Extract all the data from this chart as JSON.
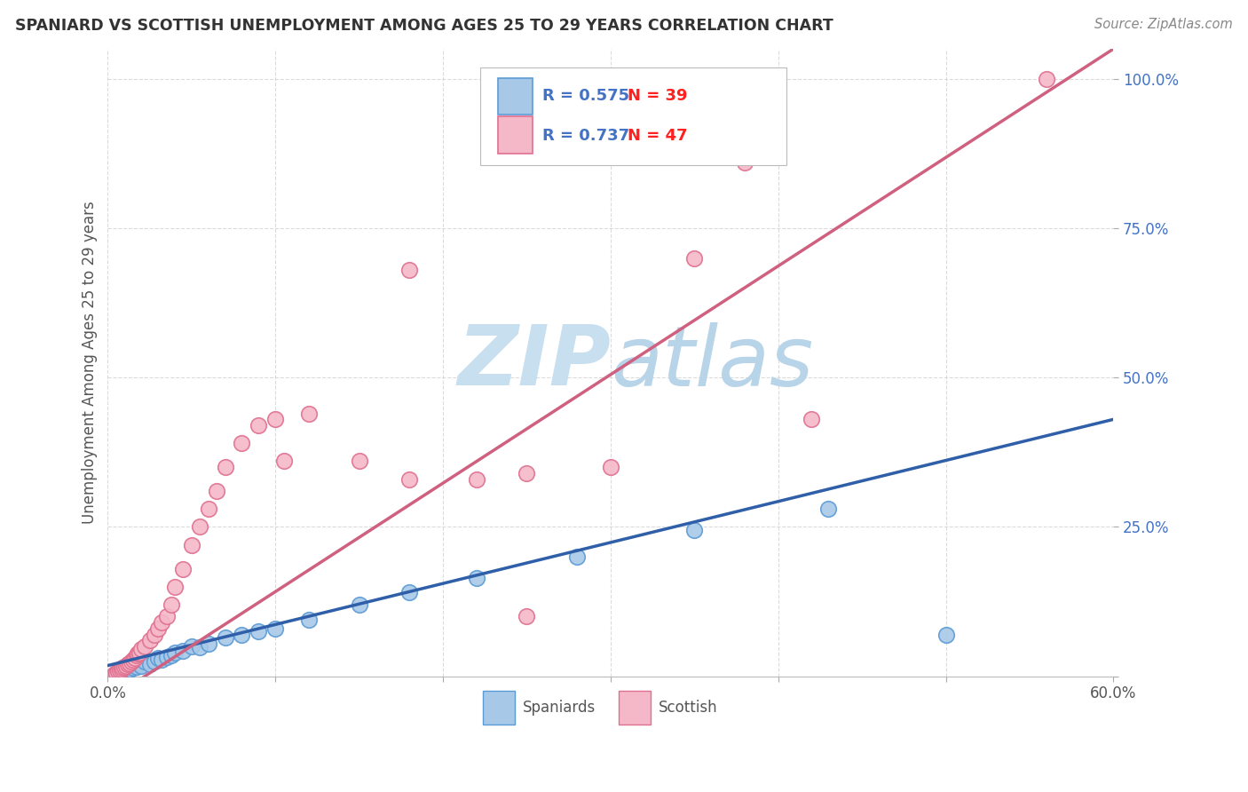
{
  "title": "SPANIARD VS SCOTTISH UNEMPLOYMENT AMONG AGES 25 TO 29 YEARS CORRELATION CHART",
  "source_text": "Source: ZipAtlas.com",
  "ylabel": "Unemployment Among Ages 25 to 29 years",
  "xmin": 0.0,
  "xmax": 0.6,
  "ymin": 0.0,
  "ymax": 1.05,
  "xtick_positions": [
    0.0,
    0.1,
    0.2,
    0.3,
    0.4,
    0.5,
    0.6
  ],
  "xtick_labels": [
    "0.0%",
    "",
    "",
    "",
    "",
    "",
    "60.0%"
  ],
  "ytick_positions": [
    0.0,
    0.25,
    0.5,
    0.75,
    1.0
  ],
  "ytick_labels": [
    "",
    "25.0%",
    "50.0%",
    "75.0%",
    "100.0%"
  ],
  "spaniards_R": 0.575,
  "spaniards_N": 39,
  "scottish_R": 0.737,
  "scottish_N": 47,
  "spaniards_dot_color": "#A8C8E8",
  "spaniards_edge_color": "#5B9BD5",
  "scottish_dot_color": "#F4B8C8",
  "scottish_edge_color": "#E07090",
  "spaniards_line_color": "#2E5FA8",
  "scottish_line_color": "#D06080",
  "watermark_zip_color": "#C8DFF0",
  "watermark_atlas_color": "#B8D4E8",
  "bg_color": "#FFFFFF",
  "grid_color": "#CCCCCC",
  "title_color": "#333333",
  "source_color": "#888888",
  "axis_label_color": "#555555",
  "ytick_color": "#4472C4",
  "legend_R_color": "#4472C4",
  "legend_N_color": "#FF0000",
  "legend_text_color": "#333333",
  "spaniards_x": [
    0.005,
    0.006,
    0.007,
    0.008,
    0.009,
    0.01,
    0.011,
    0.012,
    0.013,
    0.014,
    0.015,
    0.016,
    0.017,
    0.018,
    0.02,
    0.022,
    0.025,
    0.028,
    0.03,
    0.032,
    0.035,
    0.038,
    0.04,
    0.045,
    0.05,
    0.055,
    0.06,
    0.07,
    0.08,
    0.09,
    0.1,
    0.12,
    0.15,
    0.18,
    0.22,
    0.28,
    0.35,
    0.43,
    0.5
  ],
  "spaniards_y": [
    0.005,
    0.008,
    0.006,
    0.01,
    0.009,
    0.012,
    0.01,
    0.015,
    0.012,
    0.018,
    0.014,
    0.02,
    0.016,
    0.022,
    0.018,
    0.025,
    0.02,
    0.025,
    0.03,
    0.028,
    0.032,
    0.035,
    0.04,
    0.042,
    0.05,
    0.048,
    0.055,
    0.065,
    0.07,
    0.075,
    0.08,
    0.095,
    0.12,
    0.14,
    0.165,
    0.2,
    0.245,
    0.28,
    0.07
  ],
  "scottish_x": [
    0.004,
    0.005,
    0.006,
    0.007,
    0.008,
    0.009,
    0.01,
    0.011,
    0.012,
    0.013,
    0.014,
    0.015,
    0.016,
    0.017,
    0.018,
    0.019,
    0.02,
    0.022,
    0.025,
    0.028,
    0.03,
    0.032,
    0.035,
    0.038,
    0.04,
    0.045,
    0.05,
    0.055,
    0.06,
    0.065,
    0.07,
    0.08,
    0.09,
    0.1,
    0.12,
    0.15,
    0.18,
    0.22,
    0.25,
    0.3,
    0.35,
    0.38,
    0.42,
    0.25,
    0.18,
    0.56,
    0.105
  ],
  "scottish_y": [
    0.004,
    0.006,
    0.008,
    0.01,
    0.012,
    0.014,
    0.016,
    0.018,
    0.02,
    0.022,
    0.025,
    0.028,
    0.03,
    0.035,
    0.038,
    0.04,
    0.045,
    0.05,
    0.06,
    0.07,
    0.08,
    0.09,
    0.1,
    0.12,
    0.15,
    0.18,
    0.22,
    0.25,
    0.28,
    0.31,
    0.35,
    0.39,
    0.42,
    0.43,
    0.44,
    0.36,
    0.33,
    0.33,
    0.34,
    0.35,
    0.7,
    0.86,
    0.43,
    0.1,
    0.68,
    1.0,
    0.36
  ]
}
